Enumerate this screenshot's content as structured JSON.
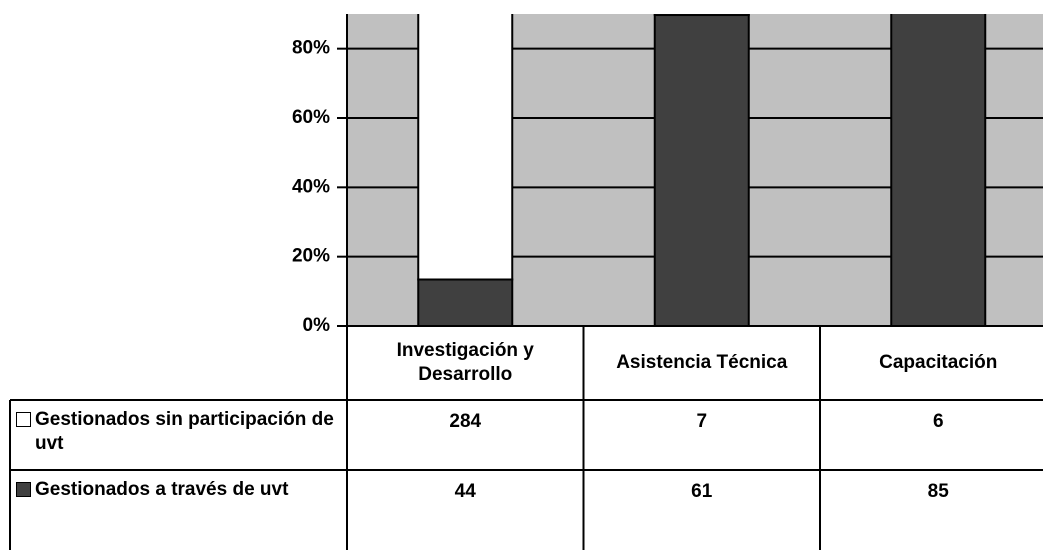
{
  "chart_data": {
    "type": "bar",
    "stacking": "percent",
    "categories": [
      "Investigación y Desarrollo",
      "Asistencia Técnica",
      "Capacitación"
    ],
    "series": [
      {
        "name": "Gestionados sin participación de uvt",
        "color": "#ffffff",
        "values": [
          284,
          7,
          6
        ]
      },
      {
        "name": "Gestionados a través de uvt",
        "color": "#404040",
        "values": [
          44,
          61,
          85
        ]
      }
    ],
    "ylim": [
      0,
      90
    ],
    "yticks": [
      {
        "value": 0,
        "label": "0%"
      },
      {
        "value": 20,
        "label": "20%"
      },
      {
        "value": 40,
        "label": "40%"
      },
      {
        "value": 60,
        "label": "60%"
      },
      {
        "value": 80,
        "label": "80%"
      }
    ],
    "grid": true,
    "plot_background": "#c0c0c0"
  }
}
